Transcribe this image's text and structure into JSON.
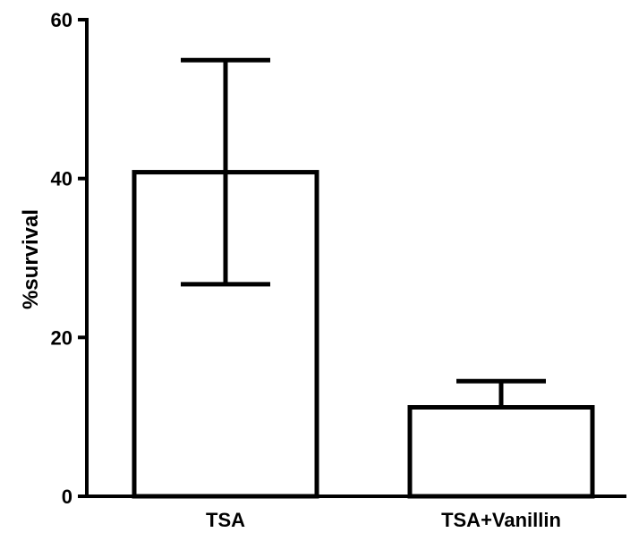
{
  "chart_data": {
    "type": "bar",
    "title": "",
    "xlabel": "",
    "ylabel": "%survival",
    "categories": [
      "TSA",
      "TSA+Vanillin"
    ],
    "values": [
      40.8,
      11.2
    ],
    "error_bars": [
      {
        "lower": 26.7,
        "upper": 54.9
      },
      {
        "lower": 11.2,
        "upper": 14.5
      }
    ],
    "ylim": [
      0,
      60
    ],
    "yticks": [
      "0",
      "20",
      "40",
      "60"
    ],
    "grid": false,
    "legend": "none",
    "colors": {
      "bar_fill": "#ffffff",
      "bar_stroke": "#000000",
      "axis": "#000000"
    }
  }
}
